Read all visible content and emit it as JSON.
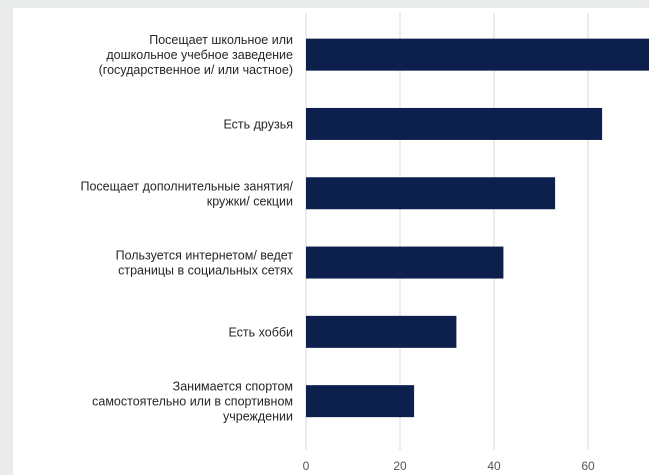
{
  "chart_data": {
    "type": "bar",
    "orientation": "horizontal",
    "categories": [
      "Посещает школьное или\nдошкольное учебное заведение\n(государственное и/ или частное)",
      "Есть друзья",
      "Посещает дополнительные занятия/\nкружки/ секции",
      "Пользуется интернетом/ ведет\nстраницы в социальных сетях",
      "Есть хобби",
      "Занимается спортом\nсамостоятельно или в спортивном\nучреждении"
    ],
    "values": [
      77,
      63,
      53,
      42,
      32,
      23
    ],
    "x_ticks": [
      "0",
      "20",
      "40",
      "60"
    ],
    "xlim": [
      0,
      80
    ],
    "bar_color": "#0c1f4d",
    "grid": true,
    "gridline_color": "#d9d9d9",
    "title": "",
    "xlabel": "",
    "ylabel": ""
  }
}
